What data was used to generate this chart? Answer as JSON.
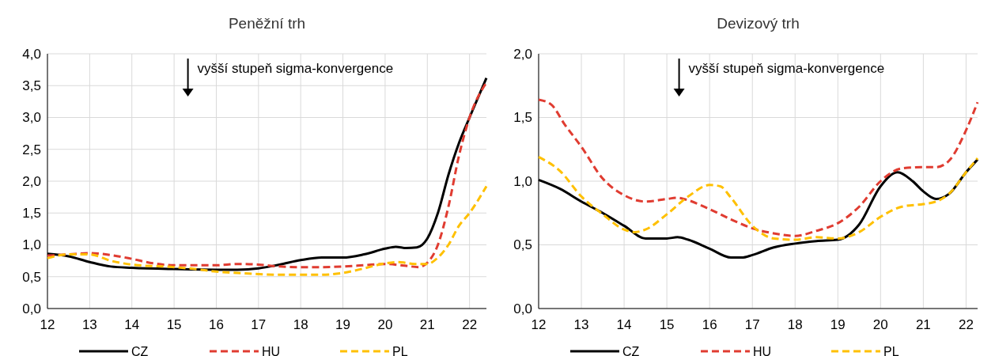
{
  "chart_data": [
    {
      "type": "line",
      "title": "Peněžní trh",
      "annotations": [
        "vyšší stupeň sigma-konvergence"
      ],
      "xlim": [
        12,
        22.4
      ],
      "xticks": [
        12,
        13,
        14,
        15,
        16,
        17,
        18,
        19,
        20,
        21,
        22
      ],
      "ylim": [
        0,
        4
      ],
      "yticks": [
        {
          "value": 0,
          "label": "0,0"
        },
        {
          "value": 0.5,
          "label": "0,5"
        },
        {
          "value": 1,
          "label": "1,0"
        },
        {
          "value": 1.5,
          "label": "1,5"
        },
        {
          "value": 2,
          "label": "2,0"
        },
        {
          "value": 2.5,
          "label": "2,5"
        },
        {
          "value": 3,
          "label": "3,0"
        },
        {
          "value": 3.5,
          "label": "3,5"
        },
        {
          "value": 4,
          "label": "4,0"
        }
      ],
      "grid": true,
      "legend": "bottom",
      "series": [
        {
          "name": "CZ",
          "color": "#000000",
          "line_style": "solid",
          "x": [
            12,
            12.5,
            13,
            13.5,
            14,
            15,
            16,
            16.5,
            17,
            17.5,
            18,
            18.5,
            19,
            19.5,
            20,
            20.25,
            20.5,
            20.75,
            21,
            21.25,
            21.5,
            21.75,
            22,
            22.4
          ],
          "values": [
            0.86,
            0.82,
            0.73,
            0.66,
            0.64,
            0.62,
            0.61,
            0.61,
            0.63,
            0.69,
            0.76,
            0.8,
            0.8,
            0.85,
            0.94,
            0.97,
            0.95,
            0.96,
            1.1,
            1.5,
            2.1,
            2.6,
            3.0,
            3.62
          ]
        },
        {
          "name": "HU",
          "color": "#e03c31",
          "line_style": "dashed",
          "x": [
            12,
            12.5,
            13,
            13.5,
            14,
            14.5,
            15,
            16,
            16.5,
            17,
            17.5,
            18,
            18.5,
            19,
            19.5,
            20,
            20.5,
            20.8,
            21,
            21.25,
            21.5,
            21.75,
            22,
            22.4
          ],
          "values": [
            0.83,
            0.85,
            0.87,
            0.84,
            0.78,
            0.71,
            0.68,
            0.68,
            0.7,
            0.69,
            0.66,
            0.65,
            0.65,
            0.66,
            0.68,
            0.7,
            0.67,
            0.65,
            0.72,
            1.0,
            1.6,
            2.4,
            3.0,
            3.55
          ]
        },
        {
          "name": "PL",
          "color": "#ffc000",
          "line_style": "dashed",
          "x": [
            12,
            12.5,
            13,
            13.5,
            14,
            15,
            15.5,
            16,
            16.5,
            17,
            17.5,
            18,
            18.5,
            19,
            19.5,
            20,
            20.3,
            20.7,
            21,
            21.25,
            21.5,
            21.75,
            22,
            22.4
          ],
          "values": [
            0.79,
            0.85,
            0.85,
            0.75,
            0.69,
            0.65,
            0.62,
            0.58,
            0.56,
            0.54,
            0.53,
            0.53,
            0.53,
            0.56,
            0.63,
            0.71,
            0.73,
            0.7,
            0.7,
            0.8,
            1.0,
            1.3,
            1.5,
            1.92
          ]
        }
      ]
    },
    {
      "type": "line",
      "title": "Devizový trh",
      "annotations": [
        "vyšší stupeň sigma-konvergence"
      ],
      "xlim": [
        12,
        22.27
      ],
      "xticks": [
        12,
        13,
        14,
        15,
        16,
        17,
        18,
        19,
        20,
        21,
        22
      ],
      "ylim": [
        0,
        2
      ],
      "yticks": [
        {
          "value": 0,
          "label": "0,0"
        },
        {
          "value": 0.5,
          "label": "0,5"
        },
        {
          "value": 1,
          "label": "1,0"
        },
        {
          "value": 1.5,
          "label": "1,5"
        },
        {
          "value": 2,
          "label": "2,0"
        }
      ],
      "grid": true,
      "legend": "bottom",
      "series": [
        {
          "name": "CZ",
          "color": "#000000",
          "line_style": "solid",
          "x": [
            12,
            12.5,
            13,
            13.5,
            14,
            14.5,
            15,
            15.25,
            15.5,
            16,
            16.5,
            16.75,
            17,
            17.5,
            18,
            18.5,
            19,
            19.5,
            20,
            20.4,
            20.75,
            21,
            21.3,
            21.6,
            22,
            22.27
          ],
          "values": [
            1.01,
            0.94,
            0.84,
            0.75,
            0.65,
            0.55,
            0.55,
            0.56,
            0.54,
            0.47,
            0.4,
            0.4,
            0.42,
            0.48,
            0.51,
            0.53,
            0.54,
            0.66,
            0.96,
            1.07,
            1.0,
            0.92,
            0.86,
            0.9,
            1.07,
            1.17
          ]
        },
        {
          "name": "HU",
          "color": "#e03c31",
          "line_style": "dashed",
          "x": [
            12,
            12.3,
            12.6,
            13,
            13.5,
            14,
            14.5,
            15,
            15.25,
            15.5,
            16,
            16.5,
            17,
            17.5,
            18,
            18.5,
            19,
            19.5,
            20,
            20.5,
            21,
            21.3,
            21.6,
            22,
            22.27
          ],
          "values": [
            1.64,
            1.6,
            1.45,
            1.27,
            1.02,
            0.89,
            0.84,
            0.86,
            0.87,
            0.85,
            0.78,
            0.7,
            0.63,
            0.59,
            0.57,
            0.61,
            0.67,
            0.8,
            1.0,
            1.1,
            1.11,
            1.11,
            1.16,
            1.4,
            1.62
          ]
        },
        {
          "name": "PL",
          "color": "#ffc000",
          "line_style": "dashed",
          "x": [
            12,
            12.5,
            13,
            13.5,
            14,
            14.25,
            14.5,
            15,
            15.5,
            16,
            16.25,
            16.5,
            17,
            17.5,
            18,
            18.5,
            19,
            19.5,
            20,
            20.5,
            21,
            21.3,
            21.6,
            22,
            22.27
          ],
          "values": [
            1.19,
            1.08,
            0.88,
            0.74,
            0.62,
            0.6,
            0.62,
            0.74,
            0.88,
            0.97,
            0.96,
            0.87,
            0.65,
            0.55,
            0.54,
            0.56,
            0.55,
            0.6,
            0.72,
            0.8,
            0.82,
            0.84,
            0.9,
            1.07,
            1.18
          ]
        }
      ]
    }
  ]
}
